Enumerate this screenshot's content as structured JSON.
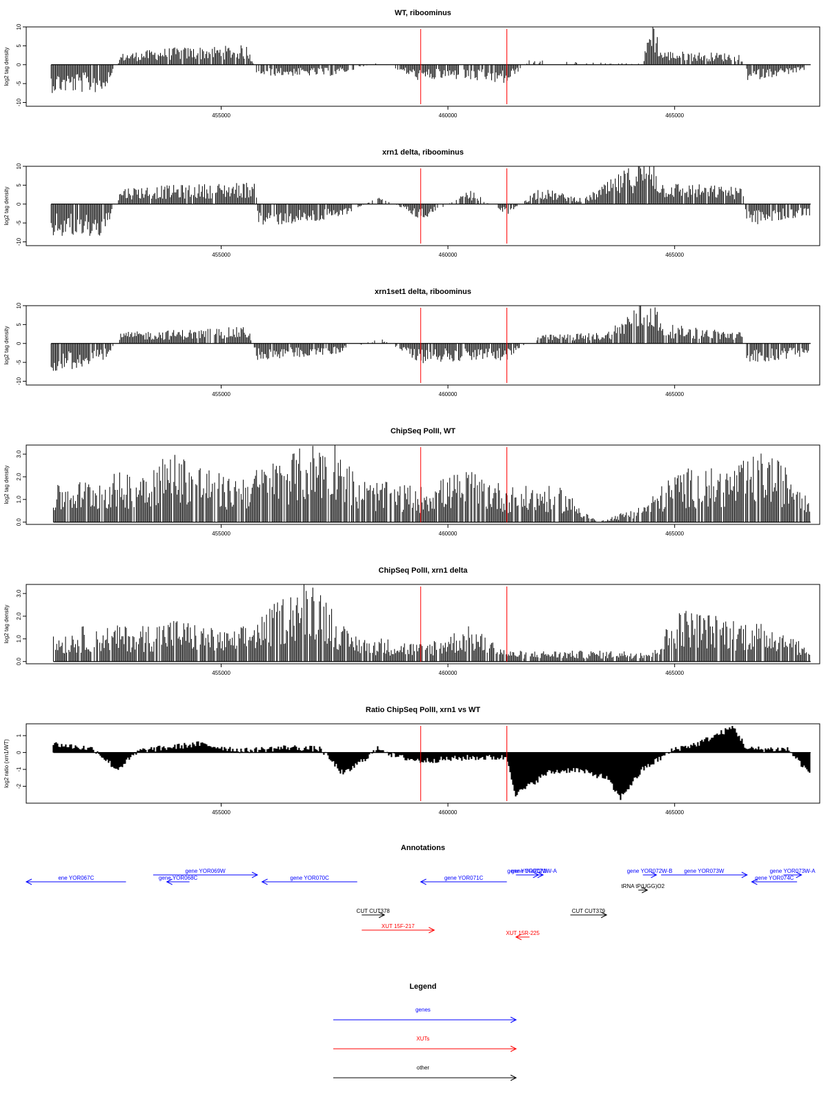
{
  "colors": {
    "axis": "#000000",
    "data": "#000000",
    "marker": "#ff0000",
    "gene": "#0000ff",
    "xut": "#ff0000",
    "other": "#000000"
  },
  "chart_data": [
    {
      "type": "bar",
      "title": "WT, riboominus",
      "ylabel": "log2 tag density",
      "ylim": [
        -11,
        10
      ],
      "yticks": [
        "10",
        "5",
        "0",
        "-5",
        "-10"
      ],
      "xlim": [
        450700,
        468200
      ],
      "xticks": [
        "455000",
        "460000",
        "465000"
      ],
      "markers": [
        459400,
        461300
      ],
      "series_profile": [
        [
          451250,
          -5
        ],
        [
          452400,
          -5
        ],
        [
          452800,
          2
        ],
        [
          453800,
          3
        ],
        [
          455600,
          3.5
        ],
        [
          455800,
          -2
        ],
        [
          457500,
          -2
        ],
        [
          458500,
          0.5
        ],
        [
          459400,
          -3
        ],
        [
          460000,
          -2.5
        ],
        [
          461300,
          -3.5
        ],
        [
          461800,
          1
        ],
        [
          462600,
          0.5
        ],
        [
          464300,
          0.2
        ],
        [
          464500,
          9.5
        ],
        [
          464700,
          2.5
        ],
        [
          466500,
          2
        ],
        [
          466600,
          -3
        ],
        [
          468000,
          -1
        ]
      ]
    },
    {
      "type": "bar",
      "title": "xrn1 delta, riboominus",
      "ylabel": "log2 tag density",
      "ylim": [
        -11,
        10
      ],
      "yticks": [
        "10",
        "5",
        "0",
        "-5",
        "-10"
      ],
      "xlim": [
        450700,
        468200
      ],
      "xticks": [
        "455000",
        "460000",
        "465000"
      ],
      "markers": [
        459400,
        461300
      ],
      "series_profile": [
        [
          451250,
          -6
        ],
        [
          452400,
          -6
        ],
        [
          452800,
          3
        ],
        [
          455800,
          4
        ],
        [
          455800,
          -4
        ],
        [
          457500,
          -3
        ],
        [
          458500,
          1.5
        ],
        [
          459400,
          -3
        ],
        [
          460500,
          2.5
        ],
        [
          461300,
          -2
        ],
        [
          462000,
          3
        ],
        [
          463000,
          1
        ],
        [
          464500,
          9.5
        ],
        [
          464700,
          4
        ],
        [
          466500,
          3
        ],
        [
          466600,
          -4
        ],
        [
          468000,
          -2
        ]
      ]
    },
    {
      "type": "bar",
      "title": "xrn1set1 delta, riboominus",
      "ylabel": "log2 tag density",
      "ylim": [
        -11,
        10
      ],
      "yticks": [
        "10",
        "5",
        "0",
        "-5",
        "-10"
      ],
      "xlim": [
        450700,
        468200
      ],
      "xticks": [
        "455000",
        "460000",
        "465000"
      ],
      "markers": [
        459400,
        461300
      ],
      "series_profile": [
        [
          451250,
          -5
        ],
        [
          452400,
          -4
        ],
        [
          452800,
          2
        ],
        [
          455600,
          3
        ],
        [
          455800,
          -3
        ],
        [
          457500,
          -2
        ],
        [
          458500,
          1
        ],
        [
          459400,
          -3.5
        ],
        [
          460500,
          -3
        ],
        [
          461300,
          -3
        ],
        [
          462000,
          1.5
        ],
        [
          463500,
          2
        ],
        [
          464500,
          9.5
        ],
        [
          464700,
          3.5
        ],
        [
          466500,
          2
        ],
        [
          466600,
          -4
        ],
        [
          468000,
          -2
        ]
      ]
    },
    {
      "type": "bar",
      "title": "ChipSeq PolII, WT",
      "ylabel": "log2 tag density",
      "ylim": [
        -0.1,
        3.4
      ],
      "yticks": [
        "3.0",
        "2.0",
        "1.0",
        "0.0"
      ],
      "xlim": [
        450700,
        468200
      ],
      "xticks": [
        "455000",
        "460000",
        "465000"
      ],
      "markers": [
        459400,
        461300
      ],
      "series_profile": [
        [
          451300,
          1
        ],
        [
          453200,
          1.5
        ],
        [
          454000,
          2
        ],
        [
          455200,
          1.2
        ],
        [
          455800,
          1.5
        ],
        [
          457500,
          2.5
        ],
        [
          458000,
          1.2
        ],
        [
          459400,
          1
        ],
        [
          460500,
          1.5
        ],
        [
          461300,
          1
        ],
        [
          461600,
          1
        ],
        [
          462500,
          1
        ],
        [
          463300,
          0
        ],
        [
          464300,
          0.5
        ],
        [
          465100,
          1.5
        ],
        [
          466200,
          1.5
        ],
        [
          467000,
          2
        ],
        [
          468000,
          1
        ]
      ]
    },
    {
      "type": "bar",
      "title": "ChipSeq PolII, xrn1 delta",
      "ylabel": "log2 tag density",
      "ylim": [
        -0.1,
        3.4
      ],
      "yticks": [
        "3.0",
        "2.0",
        "1.0",
        "0.0"
      ],
      "xlim": [
        450700,
        468200
      ],
      "xticks": [
        "455000",
        "460000",
        "465000"
      ],
      "markers": [
        459400,
        461300
      ],
      "series_profile": [
        [
          451300,
          0.7
        ],
        [
          452000,
          1
        ],
        [
          453200,
          1
        ],
        [
          454000,
          1.2
        ],
        [
          455200,
          0.8
        ],
        [
          455800,
          1.2
        ],
        [
          457000,
          2.5
        ],
        [
          457800,
          0.8
        ],
        [
          459400,
          0.5
        ],
        [
          460500,
          1
        ],
        [
          461300,
          0.3
        ],
        [
          462500,
          0.3
        ],
        [
          464500,
          0.3
        ],
        [
          465100,
          1.5
        ],
        [
          466300,
          1.2
        ],
        [
          467300,
          1
        ],
        [
          468000,
          0.3
        ]
      ]
    },
    {
      "type": "area",
      "title": "Ratio ChipSeq PolII, xrn1 vs WT",
      "ylabel": "log2 ratio (xrn1/WT)",
      "ylim": [
        -3,
        1.7
      ],
      "yticks": [
        "1",
        "0",
        "-1",
        "-2"
      ],
      "xlim": [
        450700,
        468200
      ],
      "xticks": [
        "455000",
        "460000",
        "465000"
      ],
      "markers": [
        459400,
        461300
      ],
      "series_profile": [
        [
          451300,
          0.5
        ],
        [
          452200,
          0.2
        ],
        [
          452700,
          -1
        ],
        [
          453200,
          0.1
        ],
        [
          454500,
          0.5
        ],
        [
          455500,
          0.1
        ],
        [
          456500,
          0.3
        ],
        [
          457200,
          0.2
        ],
        [
          457700,
          -1.3
        ],
        [
          458500,
          0.3
        ],
        [
          458800,
          -0.2
        ],
        [
          459400,
          -0.5
        ],
        [
          460500,
          -0.3
        ],
        [
          461300,
          -0.3
        ],
        [
          461500,
          -2.5
        ],
        [
          462200,
          -1.2
        ],
        [
          462800,
          -1
        ],
        [
          463500,
          -1.5
        ],
        [
          463800,
          -2.7
        ],
        [
          464300,
          -1
        ],
        [
          465000,
          0.2
        ],
        [
          465500,
          0.5
        ],
        [
          466300,
          1.5
        ],
        [
          466600,
          0.2
        ],
        [
          467500,
          0.2
        ],
        [
          468000,
          -1.3
        ]
      ]
    }
  ],
  "annotations": {
    "title": "Annotations",
    "features": [
      {
        "label": "ene YOR067C",
        "x1": 450700,
        "x2": 452900,
        "row": 1,
        "dir": "left",
        "type": "gene"
      },
      {
        "label": "gene YOR069W",
        "x1": 453500,
        "x2": 455800,
        "row": 0,
        "dir": "right",
        "type": "gene"
      },
      {
        "label": "gene YOR068C",
        "x1": 453800,
        "x2": 454300,
        "row": 1,
        "dir": "left",
        "type": "gene"
      },
      {
        "label": "gene YOR070C",
        "x1": 455900,
        "x2": 458000,
        "row": 1,
        "dir": "left",
        "type": "gene"
      },
      {
        "label": "gene YOR071C",
        "x1": 459400,
        "x2": 461300,
        "row": 1,
        "dir": "left",
        "type": "gene"
      },
      {
        "label": "gene YOR072W",
        "x1": 461500,
        "x2": 462000,
        "row": 0,
        "dir": "right",
        "type": "gene"
      },
      {
        "label": "gene YOR072W-A",
        "x1": 461700,
        "x2": 462100,
        "row": 0,
        "dir": "right",
        "type": "gene"
      },
      {
        "label": "gene YOR072W-B",
        "x1": 464300,
        "x2": 464600,
        "row": 0,
        "dir": "right",
        "type": "gene"
      },
      {
        "label": "gene YOR073W",
        "x1": 464700,
        "x2": 466600,
        "row": 0,
        "dir": "right",
        "type": "gene"
      },
      {
        "label": "gene YOR073W-A",
        "x1": 467400,
        "x2": 467800,
        "row": 0,
        "dir": "right",
        "type": "gene"
      },
      {
        "label": "gene YOR074C",
        "x1": 466700,
        "x2": 467700,
        "row": 1,
        "dir": "left",
        "type": "gene"
      },
      {
        "label": "tRNA tP(UGG)O2",
        "x1": 464200,
        "x2": 464400,
        "row": 2,
        "dir": "right",
        "type": "other"
      },
      {
        "label": "CUT CUT378",
        "x1": 458100,
        "x2": 458600,
        "row": 4,
        "dir": "right",
        "type": "other"
      },
      {
        "label": "CUT CUT379",
        "x1": 462700,
        "x2": 463500,
        "row": 4,
        "dir": "right",
        "type": "other"
      },
      {
        "label": "XUT 15F-217",
        "x1": 458100,
        "x2": 459700,
        "row": 5,
        "dir": "right",
        "type": "xut"
      },
      {
        "label": "XUT 15R-225",
        "x1": 461500,
        "x2": 461800,
        "row": 6,
        "dir": "left",
        "type": "xut"
      }
    ]
  },
  "legend": {
    "title": "Legend",
    "items": [
      {
        "label": "genes",
        "color": "#0000ff"
      },
      {
        "label": "XUTs",
        "color": "#ff0000"
      },
      {
        "label": "other",
        "color": "#000000"
      }
    ]
  }
}
